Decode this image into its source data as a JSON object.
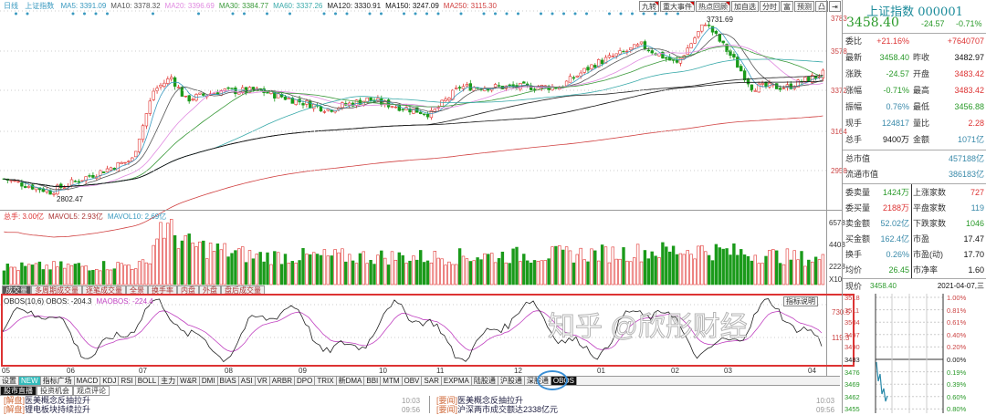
{
  "header": {
    "period": "日线",
    "name": "上证指数",
    "ma": [
      {
        "label": "MA5: 3391.09",
        "color": "#3a9ac0"
      },
      {
        "label": "MA10: 3378.32",
        "color": "#555"
      },
      {
        "label": "MA20: 3396.69",
        "color": "#e08ae0"
      },
      {
        "label": "MA30: 3384.77",
        "color": "#3a9a3a"
      },
      {
        "label": "MA60: 3337.26",
        "color": "#3aaaaa"
      },
      {
        "label": "MA120: 3330.91",
        "color": "#222"
      },
      {
        "label": "MA150: 3247.09",
        "color": "#111"
      },
      {
        "label": "MA250: 3115.30",
        "color": "#d04040"
      }
    ],
    "buttons": [
      "九转",
      "重大事件",
      "热点回顾",
      "加自选",
      "分时",
      "富",
      "预测",
      "凸",
      "⇥"
    ]
  },
  "price_axis": [
    "3783",
    "3578",
    "3372",
    "3164",
    "2958"
  ],
  "annotations": {
    "high": "3731.69",
    "low": "2802.47"
  },
  "volume": {
    "legend": [
      {
        "label": "总手: 3.00亿",
        "color": "#d33"
      },
      {
        "label": "MAVOL5: 2.93亿",
        "color": "#a33"
      },
      {
        "label": "MAVOL10: 2.69亿",
        "color": "#3a9ac0"
      }
    ],
    "axis": [
      "6578",
      "4403",
      "2228"
    ],
    "unit": "X10",
    "tabs": [
      "成交量",
      "多周期成交量",
      "逐笔成交量",
      "全景",
      "换手率",
      "内盘",
      "外盘",
      "盘后成交量"
    ]
  },
  "obos": {
    "legend": [
      {
        "label": "OBOS(10,6) OBOS: -204.3",
        "color": "#222"
      },
      {
        "label": "MAOBOS: -224.4",
        "color": "#c040c0"
      }
    ],
    "axis": [
      "730.5",
      "119.3"
    ],
    "button": "指标说明"
  },
  "months": [
    "05",
    "06",
    "07",
    "08",
    "09",
    "10",
    "11",
    "12",
    "01",
    "02",
    "03",
    "04"
  ],
  "indicator_tabs": [
    "设置",
    "NEW",
    "指标广场",
    "MACD",
    "KDJ",
    "RSI",
    "BOLL",
    "主力",
    "W&R",
    "DMI",
    "BIAS",
    "ASI",
    "VR",
    "ARBR",
    "DPO",
    "TRIX",
    "新DMA",
    "BBI",
    "MTM",
    "OBV",
    "SAR",
    "EXPMA",
    "陆股通",
    "沪股通",
    "深股通",
    "OBOS"
  ],
  "news_tabs": [
    "股市直播",
    "投资机会",
    "观点评论"
  ],
  "news_left": [
    {
      "tag": "[解盘]",
      "title": "医美概念反抽拉升",
      "time": "10:03"
    },
    {
      "tag": "[解盘]",
      "title": "锂电板块持续拉升",
      "time": "09:56"
    }
  ],
  "news_right": [
    {
      "tag": "[要闻]",
      "title": "医美概念反抽拉升",
      "time": "10:03"
    },
    {
      "tag": "[要闻]",
      "title": "沪深两市成交额达2338亿元",
      "time": "09:56"
    }
  ],
  "quote": {
    "title": "上证指数 000001",
    "price": "3458.40",
    "change": "-24.57",
    "pct": "-0.71%",
    "rows": [
      {
        "l1": "委比",
        "v1": "+21.16%",
        "c1": "red",
        "l2": "",
        "v2": "+7640707",
        "c2": "red"
      },
      {
        "l1": "最新",
        "v1": "3458.40",
        "c1": "grn",
        "l2": "昨收",
        "v2": "3482.97",
        "c2": "blk"
      },
      {
        "l1": "涨跌",
        "v1": "-24.57",
        "c1": "grn",
        "l2": "开盘",
        "v2": "3483.42",
        "c2": "red"
      },
      {
        "l1": "涨幅",
        "v1": "-0.71%",
        "c1": "grn",
        "l2": "最高",
        "v2": "3483.42",
        "c2": "red"
      },
      {
        "l1": "振幅",
        "v1": "0.76%",
        "c1": "blu",
        "l2": "最低",
        "v2": "3456.88",
        "c2": "grn"
      },
      {
        "l1": "现手",
        "v1": "124817",
        "c1": "blu",
        "l2": "量比",
        "v2": "2.28",
        "c2": "red"
      },
      {
        "l1": "总手",
        "v1": "9400万",
        "c1": "blk",
        "l2": "金额",
        "v2": "1071亿",
        "c2": "blu"
      }
    ],
    "cap": [
      {
        "l": "总市值",
        "v": "457188亿"
      },
      {
        "l": "流通市值",
        "v": "386183亿"
      }
    ],
    "rows2": [
      {
        "l1": "委卖量",
        "v1": "1424万",
        "c1": "grn",
        "l2": "上涨家数",
        "v2": "727",
        "c2": "red"
      },
      {
        "l1": "委买量",
        "v1": "2188万",
        "c1": "red",
        "l2": "平盘家数",
        "v2": "119",
        "c2": "blu"
      },
      {
        "l1": "卖金额",
        "v1": "52.02亿",
        "c1": "blu",
        "l2": "下跌家数",
        "v2": "1046",
        "c2": "grn"
      },
      {
        "l1": "买金额",
        "v1": "162.4亿",
        "c1": "blu",
        "l2": "市盈",
        "v2": "17.47",
        "c2": "blk"
      },
      {
        "l1": "换手",
        "v1": "0.26%",
        "c1": "blu",
        "l2": "市盈(动)",
        "v2": "17.70",
        "c2": "blk"
      },
      {
        "l1": "均价",
        "v1": "26.45",
        "c1": "grn",
        "l2": "市净率",
        "v2": "1.60",
        "c2": "blk"
      }
    ],
    "now_label": "现价",
    "now_value": "3458.40",
    "date": "2021-04-07,三",
    "mini_left": [
      "3518",
      "3511",
      "3504",
      "3497",
      "3490",
      "3483",
      "3476",
      "3469",
      "3462",
      "3455"
    ],
    "mini_right": [
      "1.00%",
      "0.81%",
      "0.61%",
      "0.40%",
      "0.20%",
      "0.00%",
      "0.19%",
      "0.39%",
      "0.60%",
      "0.80%"
    ]
  },
  "watermark": "知乎 @欣彤财经",
  "chart_data": {
    "type": "candlestick",
    "title": "上证指数 日线",
    "ylim": [
      2750,
      3800
    ],
    "price_path": [
      [
        0,
        2915
      ],
      [
        13,
        2850
      ],
      [
        26,
        2945
      ],
      [
        36,
        3015
      ],
      [
        42,
        3370
      ],
      [
        47,
        3440
      ],
      [
        51,
        3325
      ],
      [
        61,
        3370
      ],
      [
        72,
        3370
      ],
      [
        91,
        3275
      ],
      [
        102,
        3325
      ],
      [
        120,
        3250
      ],
      [
        128,
        3390
      ],
      [
        143,
        3390
      ],
      [
        156,
        3390
      ],
      [
        166,
        3510
      ],
      [
        179,
        3605
      ],
      [
        189,
        3510
      ],
      [
        197,
        3725
      ],
      [
        205,
        3530
      ],
      [
        210,
        3390
      ],
      [
        220,
        3390
      ],
      [
        230,
        3458
      ]
    ],
    "volume_path": [
      [
        0,
        1800
      ],
      [
        40,
        2100
      ],
      [
        44,
        6300
      ],
      [
        52,
        4200
      ],
      [
        70,
        3000
      ],
      [
        120,
        2900
      ],
      [
        170,
        3300
      ],
      [
        195,
        3700
      ],
      [
        215,
        3100
      ],
      [
        230,
        2600
      ]
    ],
    "volume_ylim": [
      0,
      7000
    ],
    "obos_ylim": [
      -900,
      900
    ],
    "colors": {
      "up": "#e0312e",
      "down": "#1a9a1a"
    }
  }
}
